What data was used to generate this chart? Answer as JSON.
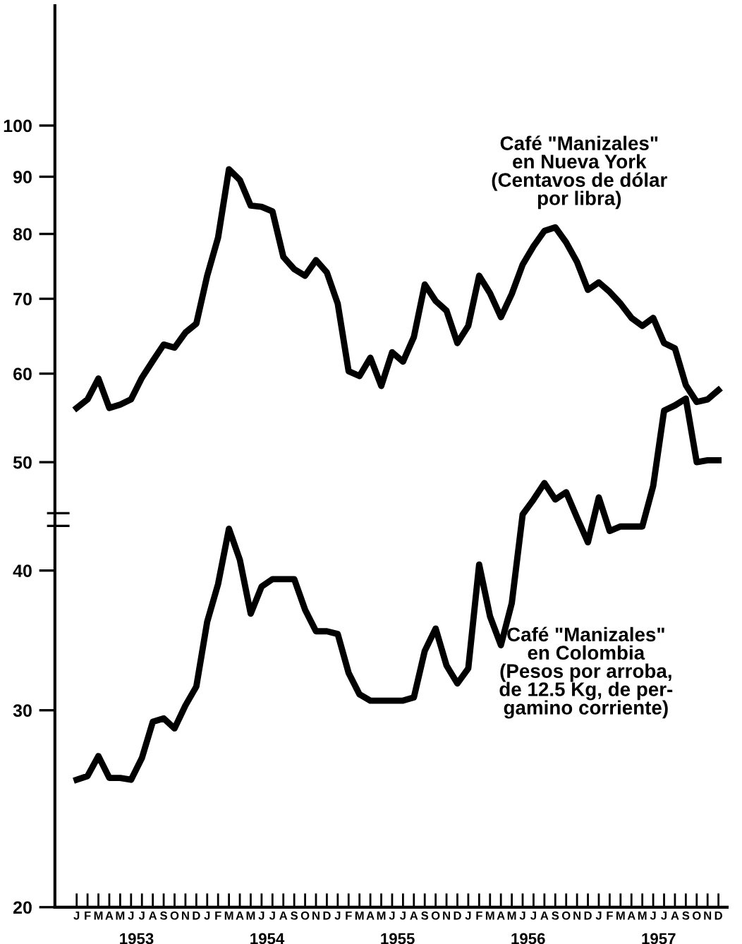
{
  "chart_data": {
    "type": "line",
    "log": "y",
    "grid": false,
    "legend": false,
    "marker": "none",
    "line_style": "solid",
    "categories": [
      "J",
      "F",
      "M",
      "A",
      "M",
      "J",
      "J",
      "A",
      "S",
      "O",
      "N",
      "D",
      "J",
      "F",
      "M",
      "A",
      "M",
      "J",
      "J",
      "A",
      "S",
      "O",
      "N",
      "D",
      "J",
      "F",
      "M",
      "A",
      "M",
      "J",
      "J",
      "A",
      "S",
      "O",
      "N",
      "D",
      "J",
      "F",
      "M",
      "A",
      "M",
      "J",
      "J",
      "A",
      "S",
      "O",
      "N",
      "D",
      "J",
      "F",
      "M",
      "A",
      "M",
      "J",
      "J",
      "A",
      "S",
      "O",
      "N",
      "D"
    ],
    "series": [
      {
        "name": "Café \"Manizales\"\nen Nueva York\n(Centavos de dólar\npor libra)",
        "color": "#000000",
        "values": [
          55.9,
          56.9,
          59.4,
          55.9,
          56.3,
          56.9,
          59.5,
          61.6,
          63.7,
          63.3,
          65.3,
          66.5,
          73.4,
          79.4,
          91.4,
          89.4,
          84.8,
          84.6,
          83.8,
          76.3,
          74.4,
          73.4,
          75.8,
          73.9,
          69.3,
          60.3,
          59.7,
          62.0,
          58.5,
          62.7,
          61.5,
          64.7,
          72.1,
          69.7,
          68.3,
          63.9,
          66.2,
          73.4,
          70.8,
          67.4,
          70.7,
          75.1,
          78.0,
          80.5,
          81.1,
          78.6,
          75.5,
          71.3,
          72.4,
          71.0,
          69.3,
          67.3,
          66.2,
          67.3,
          63.9,
          63.2,
          58.6,
          56.6,
          56.9,
          58.0
        ]
      },
      {
        "name": "Café \"Manizales\"\nen Colombia\n(Pesos por arroba,\nde 12.5 Kg, de per-\ngamino corriente)",
        "color": "#000000",
        "values": [
          26.0,
          26.2,
          27.3,
          26.1,
          26.1,
          26.0,
          27.2,
          29.3,
          29.5,
          28.9,
          30.3,
          31.5,
          36.0,
          38.9,
          43.6,
          40.9,
          36.6,
          38.7,
          39.3,
          39.3,
          39.3,
          36.9,
          35.3,
          35.3,
          35.1,
          32.4,
          31.0,
          30.6,
          30.6,
          30.6,
          30.6,
          30.8,
          33.9,
          35.5,
          32.9,
          31.7,
          32.7,
          40.5,
          36.4,
          34.3,
          37.4,
          44.9,
          46.3,
          47.9,
          46.3,
          47.0,
          44.6,
          42.4,
          46.5,
          43.4,
          43.8,
          43.8,
          43.8,
          47.6,
          55.6,
          56.2,
          57.0,
          50.0,
          50.2,
          50.2
        ]
      }
    ],
    "ylim": [
      20,
      128
    ],
    "yticks": [
      20,
      30,
      40,
      50,
      60,
      70,
      80,
      90,
      100
    ],
    "annotations": [
      "1953",
      "1954",
      "1955",
      "1956",
      "1957"
    ]
  }
}
